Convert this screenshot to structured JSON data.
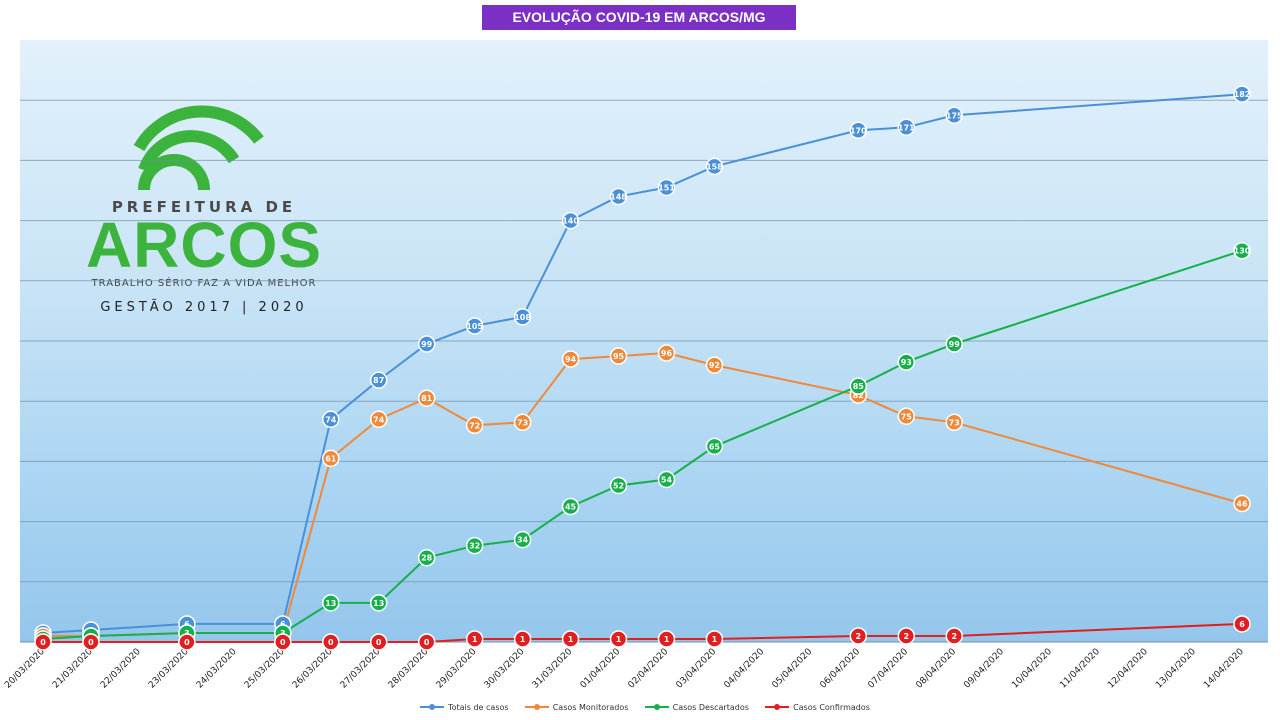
{
  "chart_data": {
    "type": "line",
    "title": "EVOLUÇÃO COVID-19 EM ARCOS/MG",
    "categories": [
      "20/03/2020",
      "21/03/2020",
      "22/03/2020",
      "23/03/2020",
      "24/03/2020",
      "25/03/2020",
      "26/03/2020",
      "27/03/2020",
      "28/03/2020",
      "29/03/2020",
      "30/03/2020",
      "31/03/2020",
      "01/04/2020",
      "02/04/2020",
      "03/04/2020",
      "04/04/2020",
      "05/04/2020",
      "06/04/2020",
      "07/04/2020",
      "08/04/2020",
      "09/04/2020",
      "10/04/2020",
      "11/04/2020",
      "12/04/2020",
      "13/04/2020",
      "14/04/2020"
    ],
    "ylim": [
      0,
      200
    ],
    "grid": true,
    "legend_position": "bottom",
    "series": [
      {
        "name": "Totais de casos",
        "color": "#4a90d9",
        "values": [
          3,
          4,
          null,
          6,
          null,
          6,
          74,
          87,
          99,
          105,
          108,
          140,
          148,
          151,
          158,
          null,
          null,
          170,
          171,
          175,
          null,
          null,
          null,
          null,
          null,
          182
        ]
      },
      {
        "name": "Casos Monitorados",
        "color": "#f0883a",
        "values": [
          2,
          2,
          null,
          3,
          null,
          3,
          61,
          74,
          81,
          72,
          73,
          94,
          95,
          96,
          92,
          null,
          null,
          82,
          75,
          73,
          null,
          null,
          null,
          null,
          null,
          46
        ]
      },
      {
        "name": "Casos Descartados",
        "color": "#15b04a",
        "values": [
          1,
          2,
          null,
          3,
          null,
          3,
          13,
          13,
          28,
          32,
          34,
          45,
          52,
          54,
          65,
          null,
          null,
          85,
          93,
          99,
          null,
          null,
          null,
          null,
          null,
          130
        ]
      },
      {
        "name": "Casos Confirmados",
        "color": "#e02020",
        "values": [
          0,
          0,
          null,
          0,
          null,
          0,
          0,
          0,
          0,
          1,
          1,
          1,
          1,
          1,
          1,
          null,
          null,
          2,
          2,
          2,
          null,
          null,
          null,
          null,
          null,
          6
        ]
      }
    ]
  },
  "logo": {
    "top_text": "PREFEITURA DE",
    "main_text": "ARCOS",
    "slogan": "TRABALHO SÉRIO FAZ A VIDA MELHOR",
    "gestao": "GESTÃO 2017 | 2020",
    "color": "#3cb33c"
  }
}
